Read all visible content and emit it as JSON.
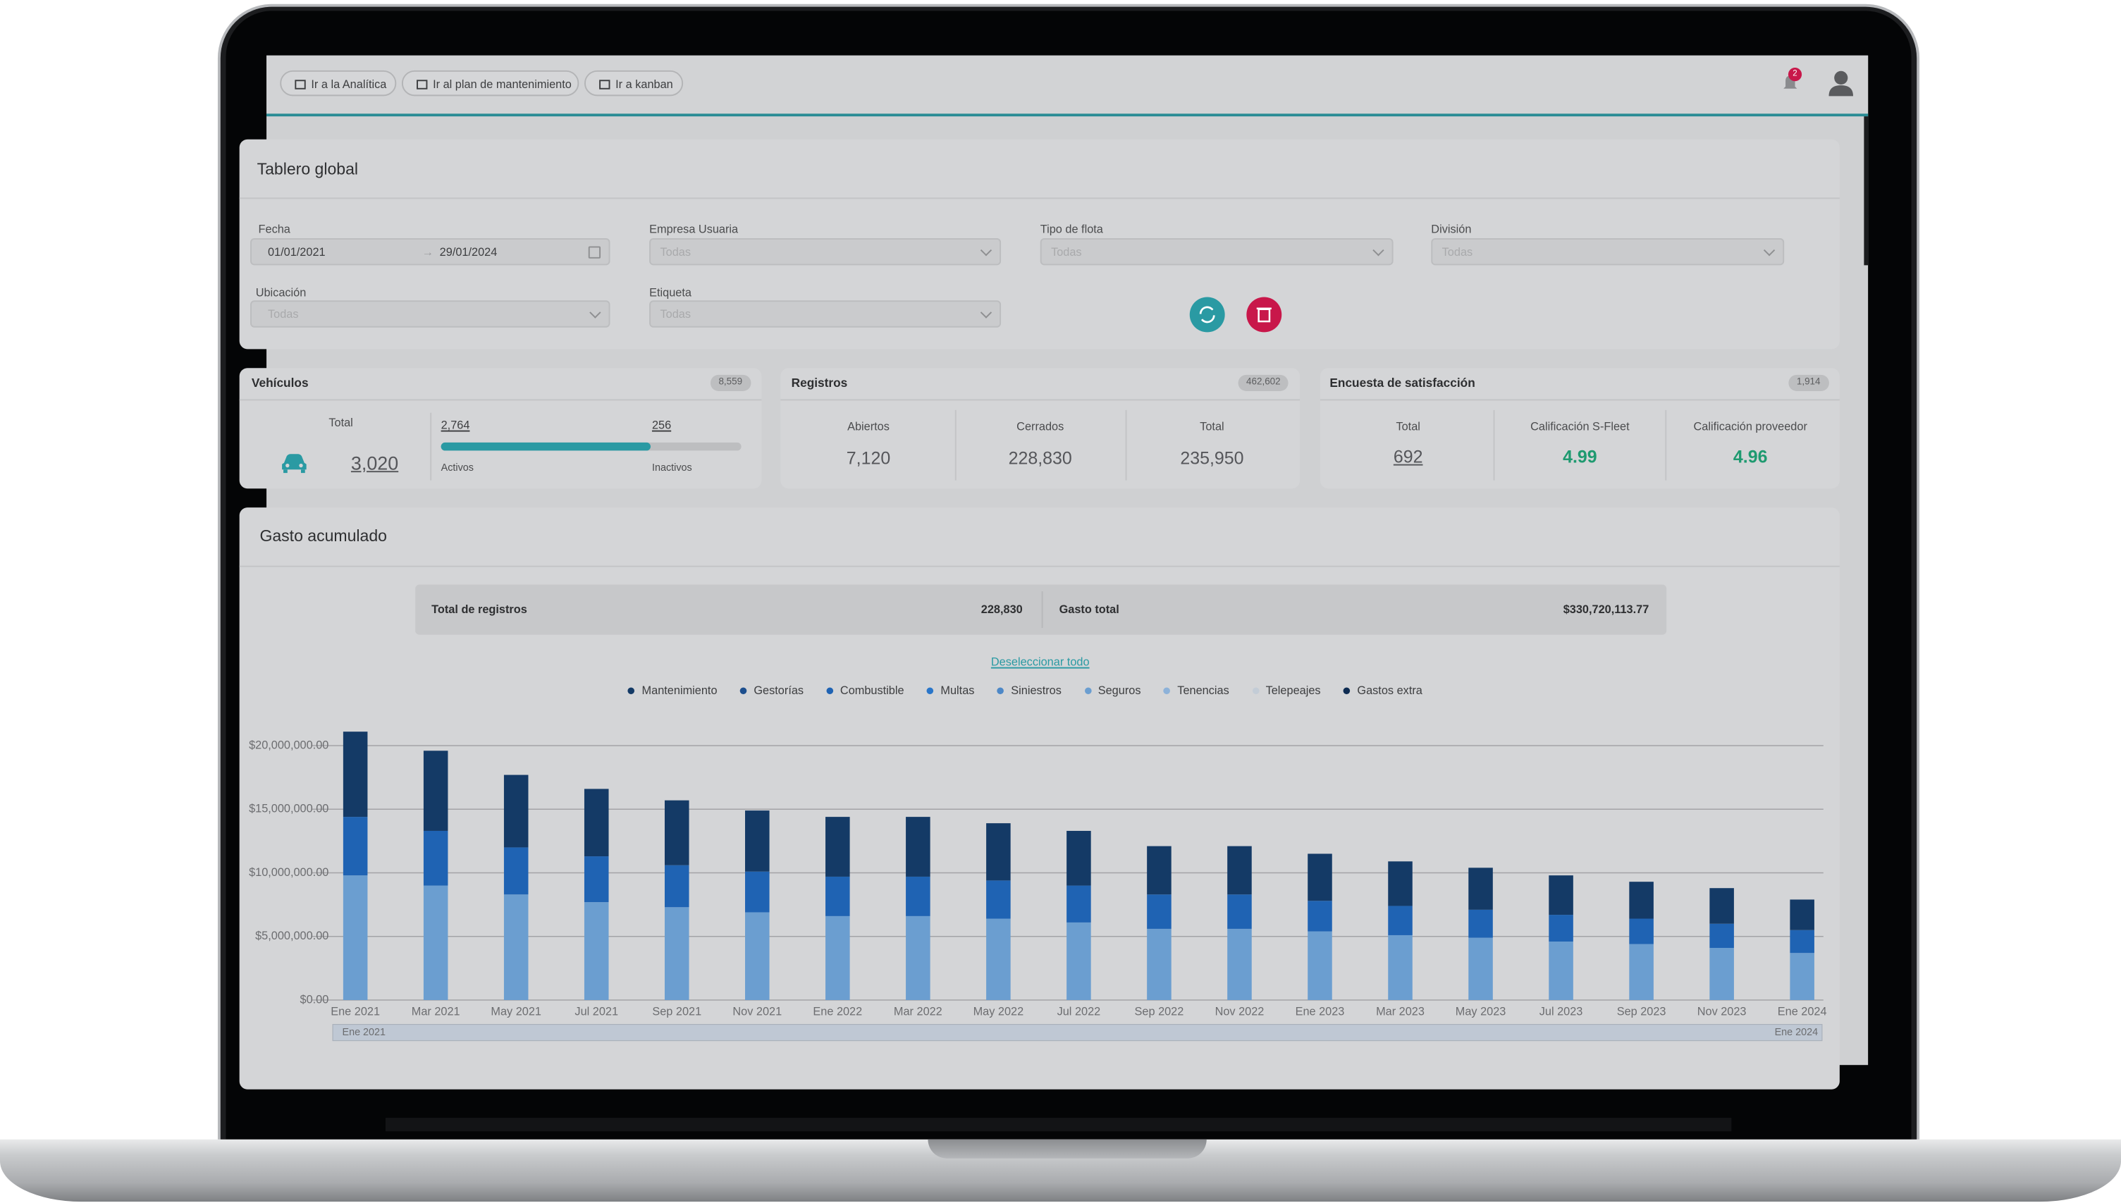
{
  "toolbar": {
    "buttons": [
      "Ir a la Analítica",
      "Ir al plan de mantenimiento",
      "Ir a kanban"
    ],
    "notifications": 2
  },
  "dashboard": {
    "title": "Tablero global",
    "filters": [
      {
        "label": "Fecha",
        "start": "01/01/2021",
        "end": "29/01/2024"
      },
      {
        "label": "Empresa Usuaria",
        "value": "Todas"
      },
      {
        "label": "Tipo de flota",
        "value": "Todas"
      },
      {
        "label": "División",
        "value": "Todas"
      },
      {
        "label": "Ubicación",
        "value": "Todas"
      },
      {
        "label": "Etiqueta",
        "value": "Todas"
      }
    ]
  },
  "vehicles": {
    "title": "Vehículos",
    "badge": "8,559",
    "total_label": "Total",
    "total": "3,020",
    "active": "2,764",
    "active_label": "Activos",
    "inactive": "256",
    "inactive_label": "Inactivos"
  },
  "records": {
    "title": "Registros",
    "badge": "462,602",
    "columns": [
      {
        "label": "Abiertos",
        "value": "7,120"
      },
      {
        "label": "Cerrados",
        "value": "228,830"
      },
      {
        "label": "Total",
        "value": "235,950"
      }
    ]
  },
  "survey": {
    "title": "Encuesta de satisfacción",
    "badge": "1,914",
    "columns": [
      {
        "label": "Total",
        "value": "692"
      },
      {
        "label": "Calificación S-Fleet",
        "value": "4.99"
      },
      {
        "label": "Calificación proveedor",
        "value": "4.96"
      }
    ]
  },
  "expenses": {
    "title": "Gasto acumulado",
    "records_label": "Total de registros",
    "records_value": "228,830",
    "spend_label": "Gasto total",
    "spend_value": "$330,720,113.77",
    "deselect": "Deseleccionar todo"
  },
  "chart_data": {
    "type": "stacked-bar",
    "categories": [
      "Ene 2021",
      "Mar 2021",
      "May 2021",
      "Jul 2021",
      "Sep 2021",
      "Nov 2021",
      "Ene 2022",
      "Mar 2022",
      "May 2022",
      "Jul 2022",
      "Sep 2022",
      "Nov 2022",
      "Ene 2023",
      "Mar 2023",
      "May 2023",
      "Jul 2023",
      "Sep 2023",
      "Nov 2023",
      "Ene 2024"
    ],
    "series": [
      {
        "name": "Mantenimiento",
        "color": "#143a66",
        "values": [
          6700000,
          6300000,
          5700000,
          5300000,
          5100000,
          4800000,
          4700000,
          4700000,
          4500000,
          4300000,
          3800000,
          3800000,
          3700000,
          3500000,
          3300000,
          3100000,
          2900000,
          2800000,
          2400000
        ]
      },
      {
        "name": "Gestorías",
        "color": "#1d4f8e",
        "values": [
          0,
          0,
          0,
          0,
          0,
          0,
          0,
          0,
          0,
          0,
          0,
          0,
          0,
          0,
          0,
          0,
          0,
          0,
          0
        ]
      },
      {
        "name": "Combustible",
        "color": "#1f63b3",
        "values": [
          4600000,
          4300000,
          3700000,
          3600000,
          3300000,
          3200000,
          3100000,
          3100000,
          3000000,
          2900000,
          2700000,
          2700000,
          2400000,
          2300000,
          2200000,
          2100000,
          2000000,
          1900000,
          1800000
        ]
      },
      {
        "name": "Multas",
        "color": "#2a76c9",
        "values": [
          0,
          0,
          0,
          0,
          0,
          0,
          0,
          0,
          0,
          0,
          0,
          0,
          0,
          0,
          0,
          0,
          0,
          0,
          0
        ]
      },
      {
        "name": "Siniestros",
        "color": "#4d88c7",
        "values": [
          0,
          0,
          0,
          0,
          0,
          0,
          0,
          0,
          0,
          0,
          0,
          0,
          0,
          0,
          0,
          0,
          0,
          0,
          0
        ]
      },
      {
        "name": "Seguros",
        "color": "#6b9ed0",
        "values": [
          9800000,
          9000000,
          8300000,
          7700000,
          7300000,
          6900000,
          6600000,
          6600000,
          6400000,
          6100000,
          5600000,
          5600000,
          5400000,
          5100000,
          4900000,
          4600000,
          4400000,
          4100000,
          3700000
        ]
      },
      {
        "name": "Tenencias",
        "color": "#8db2d9",
        "values": [
          0,
          0,
          0,
          0,
          0,
          0,
          0,
          0,
          0,
          0,
          0,
          0,
          0,
          0,
          0,
          0,
          0,
          0,
          0
        ]
      },
      {
        "name": "Telepeajes",
        "color": "#c3ccd6",
        "values": [
          0,
          0,
          0,
          0,
          0,
          0,
          0,
          0,
          0,
          0,
          0,
          0,
          0,
          0,
          0,
          0,
          0,
          0,
          0
        ]
      },
      {
        "name": "Gastos extra",
        "color": "#0e2c52",
        "values": [
          0,
          0,
          0,
          0,
          0,
          0,
          0,
          0,
          0,
          0,
          0,
          0,
          0,
          0,
          0,
          0,
          0,
          0,
          0
        ]
      }
    ],
    "ylim": [
      0,
      20000000
    ],
    "yticks": [
      {
        "value": 0,
        "label": "$0.00"
      },
      {
        "value": 5000000,
        "label": "$5,000,000.00"
      },
      {
        "value": 10000000,
        "label": "$10,000,000.00"
      },
      {
        "value": 15000000,
        "label": "$15,000,000.00"
      },
      {
        "value": 20000000,
        "label": "$20,000,000.00"
      }
    ],
    "grid": true,
    "navigator_labels": [
      "Ene 2021",
      "Ene 2024"
    ]
  }
}
